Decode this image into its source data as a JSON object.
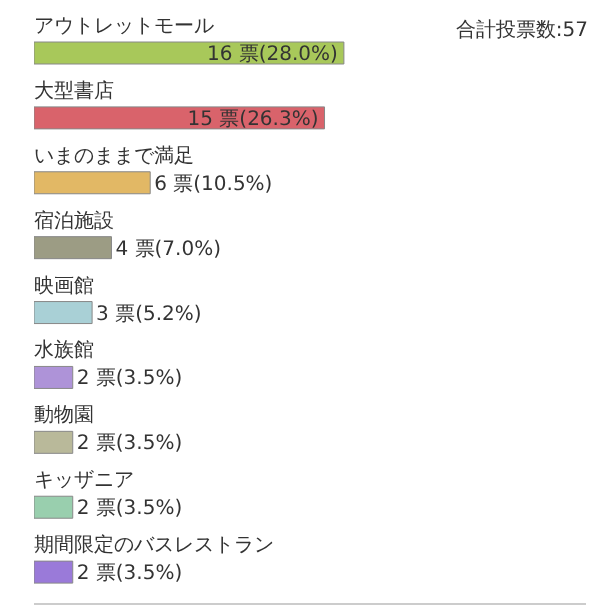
{
  "chart_data": {
    "type": "bar",
    "orientation": "horizontal",
    "categories": [
      "アウトレットモール",
      "大型書店",
      "いまのままで満足",
      "宿泊施設",
      "映画館",
      "水族館",
      "動物園",
      "キッザニア",
      "期間限定のバスレストラン"
    ],
    "values": [
      16,
      15,
      6,
      4,
      3,
      2,
      2,
      2,
      2
    ],
    "colors": [
      "#a8c85a",
      "#d9636b",
      "#e2b865",
      "#9c9c84",
      "#a9d0d6",
      "#ae93d8",
      "#b9b99a",
      "#99cfae",
      "#9a7ad9"
    ],
    "value_labels": [
      "16 票(28.0%)",
      "15 票(26.3%)",
      "6 票(10.5%)",
      "4 票(7.0%)",
      "3 票(5.2%)",
      "2 票(3.5%)",
      "2 票(3.5%)",
      "2 票(3.5%)",
      "2 票(3.5%)"
    ],
    "xlim": [
      0,
      28.5
    ],
    "annotations": [
      "合計投票数:57"
    ]
  }
}
